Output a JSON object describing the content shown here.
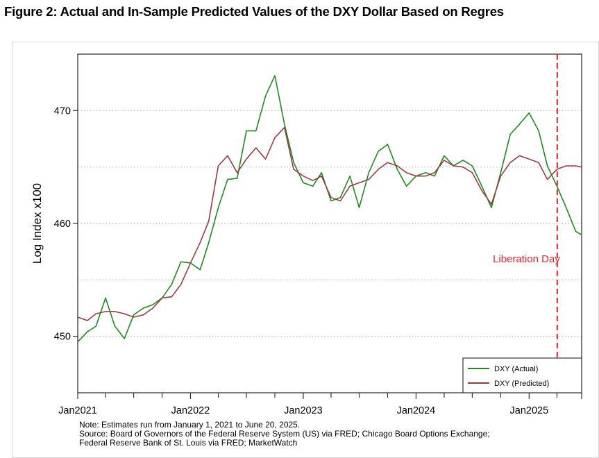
{
  "title": "Figure 2: Actual and In-Sample Predicted Values of the DXY Dollar Based on Regres",
  "chart_data": {
    "type": "line",
    "title": "Figure 2: Actual and In-Sample Predicted Values of the DXY Dollar Based on Regres",
    "ylabel": "Log Index x100",
    "xlabel": "",
    "xlim": [
      "2021-01-01",
      "2025-06-20"
    ],
    "ylim": [
      445,
      475
    ],
    "x_ticks": [
      {
        "date": "2021-01-01",
        "label": "Jan2021"
      },
      {
        "date": "2022-01-01",
        "label": "Jan2022"
      },
      {
        "date": "2023-01-01",
        "label": "Jan2023"
      },
      {
        "date": "2024-01-01",
        "label": "Jan2024"
      },
      {
        "date": "2025-01-01",
        "label": "Jan2025"
      }
    ],
    "y_ticks": [
      450,
      460,
      470
    ],
    "grid": {
      "y": [
        450,
        455,
        460,
        465,
        470
      ],
      "style": "dotted"
    },
    "legend_placement": "bottom-right",
    "x": [
      "2021-01",
      "2021-02",
      "2021-03",
      "2021-04",
      "2021-05",
      "2021-06",
      "2021-07",
      "2021-08",
      "2021-09",
      "2021-10",
      "2021-11",
      "2021-12",
      "2022-01",
      "2022-02",
      "2022-03",
      "2022-04",
      "2022-05",
      "2022-06",
      "2022-07",
      "2022-08",
      "2022-09",
      "2022-10",
      "2022-11",
      "2022-12",
      "2023-01",
      "2023-02",
      "2023-03",
      "2023-04",
      "2023-05",
      "2023-06",
      "2023-07",
      "2023-08",
      "2023-09",
      "2023-10",
      "2023-11",
      "2023-12",
      "2024-01",
      "2024-02",
      "2024-03",
      "2024-04",
      "2024-05",
      "2024-06",
      "2024-07",
      "2024-08",
      "2024-09",
      "2024-10",
      "2024-11",
      "2024-12",
      "2025-01",
      "2025-02",
      "2025-03",
      "2025-04",
      "2025-05",
      "2025-06",
      "2025-06-20"
    ],
    "series": [
      {
        "name": "DXY (Actual)",
        "color": "#1a8c1a",
        "values": [
          449.5,
          450.4,
          450.9,
          453.4,
          450.9,
          449.8,
          451.9,
          452.5,
          452.8,
          453.4,
          454.6,
          456.6,
          456.5,
          455.9,
          458.3,
          461.4,
          463.9,
          464.0,
          468.2,
          468.2,
          471.3,
          473.1,
          468.8,
          465.4,
          463.6,
          463.3,
          464.5,
          462.0,
          462.3,
          464.2,
          461.4,
          464.5,
          466.4,
          467.0,
          464.8,
          463.3,
          464.2,
          464.5,
          464.2,
          466.0,
          465.1,
          465.6,
          465.1,
          463.3,
          461.4,
          464.5,
          467.9,
          468.8,
          469.8,
          468.2,
          465.1,
          463.3,
          461.4,
          459.3,
          459.0
        ]
      },
      {
        "name": "DXY (Predicted)",
        "color": "#9b3a3f",
        "values": [
          451.7,
          451.4,
          452.0,
          452.2,
          452.2,
          452.0,
          451.7,
          451.9,
          452.5,
          453.4,
          453.5,
          454.6,
          456.5,
          458.3,
          460.2,
          465.1,
          466.0,
          464.5,
          465.7,
          466.7,
          465.7,
          467.6,
          468.5,
          464.8,
          464.2,
          463.8,
          464.2,
          462.3,
          462.0,
          463.3,
          463.6,
          463.9,
          464.8,
          465.4,
          465.1,
          464.5,
          464.2,
          464.2,
          464.5,
          465.6,
          465.1,
          465.0,
          464.5,
          462.9,
          461.7,
          464.2,
          465.4,
          466.0,
          465.7,
          465.4,
          463.9,
          464.8,
          465.1,
          465.1,
          465.0
        ]
      }
    ],
    "annotations": [
      {
        "type": "vertical-dashed-line",
        "date": "2025-04-02",
        "color": "#e8222a",
        "label": "Liberation Day"
      }
    ]
  },
  "note": {
    "line1": "Note: Estimates run from January 1, 2021 to June 20, 2025.",
    "line2": "Source: Board of Governors of the Federal Reserve System (US) via FRED; Chicago Board Options Exchange;",
    "line3": "Federal Reserve Bank of St. Louis via FRED; MarketWatch"
  }
}
